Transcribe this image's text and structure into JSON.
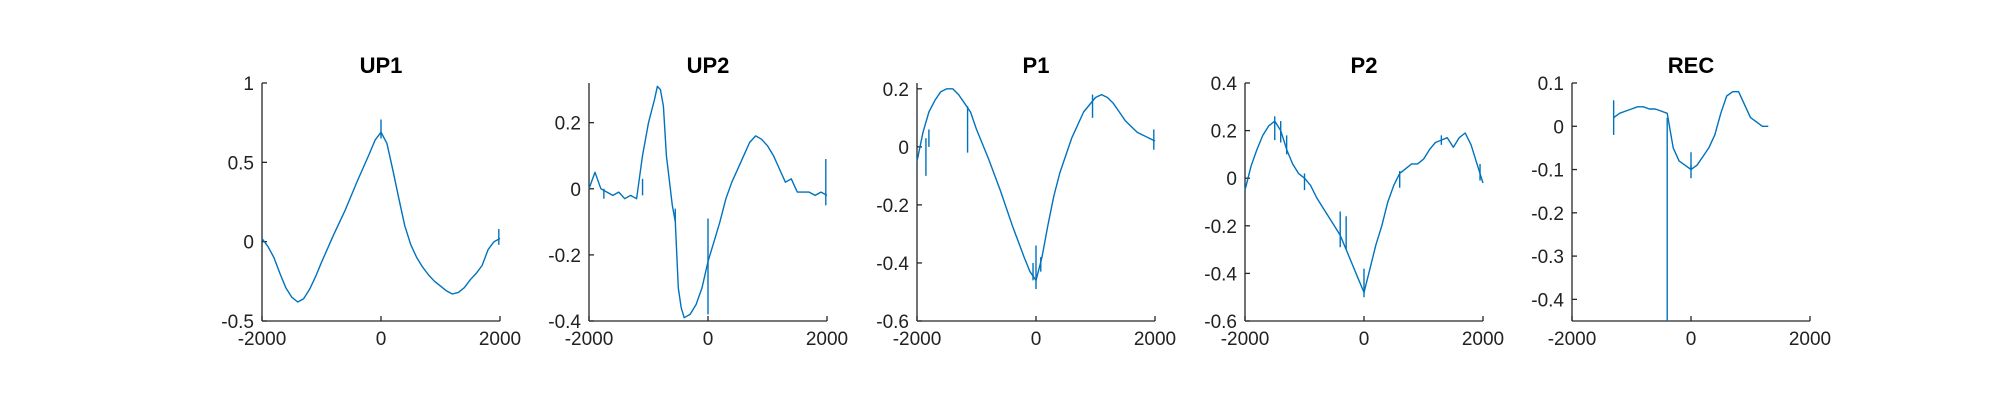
{
  "figure": {
    "background": "#ffffff",
    "line_color": "#0072BD"
  },
  "chart_data": [
    {
      "type": "line",
      "title": "UP1",
      "xlabel": "",
      "ylabel": "",
      "xlim": [
        -2000,
        2000
      ],
      "ylim": [
        -0.5,
        1
      ],
      "xticks": [
        -2000,
        0,
        2000
      ],
      "xtick_labels": [
        "-2000",
        "0",
        "2000"
      ],
      "yticks": [
        -0.5,
        0,
        0.5,
        1
      ],
      "ytick_labels": [
        "-0.5",
        "0",
        "0.5",
        "1"
      ],
      "grid": false,
      "series": [
        {
          "color": "#0072BD",
          "x": [
            -2000,
            -1900,
            -1800,
            -1700,
            -1600,
            -1500,
            -1400,
            -1300,
            -1200,
            -1100,
            -1000,
            -800,
            -600,
            -400,
            -200,
            -100,
            0,
            100,
            200,
            300,
            400,
            500,
            600,
            700,
            800,
            900,
            1000,
            1100,
            1200,
            1300,
            1400,
            1500,
            1600,
            1700,
            1800,
            1900,
            2000
          ],
          "y": [
            0.02,
            -0.03,
            -0.1,
            -0.2,
            -0.29,
            -0.35,
            -0.38,
            -0.36,
            -0.3,
            -0.22,
            -0.13,
            0.04,
            0.2,
            0.38,
            0.55,
            0.64,
            0.69,
            0.62,
            0.45,
            0.27,
            0.1,
            -0.02,
            -0.1,
            -0.16,
            -0.21,
            -0.25,
            -0.28,
            -0.31,
            -0.33,
            -0.32,
            -0.29,
            -0.24,
            -0.2,
            -0.15,
            -0.05,
            0.0,
            0.02
          ]
        },
        {
          "type": "spikes",
          "color": "#0072BD",
          "x": [
            0,
            1980
          ],
          "y0": [
            0.65,
            -0.02
          ],
          "y1": [
            0.77,
            0.08
          ]
        }
      ]
    },
    {
      "type": "line",
      "title": "UP2",
      "xlabel": "",
      "ylabel": "",
      "xlim": [
        -2000,
        2000
      ],
      "ylim": [
        -0.4,
        0.32
      ],
      "xticks": [
        -2000,
        0,
        2000
      ],
      "xtick_labels": [
        "-2000",
        "0",
        "2000"
      ],
      "yticks": [
        -0.4,
        -0.2,
        0,
        0.2
      ],
      "ytick_labels": [
        "-0.4",
        "-0.2",
        "0",
        "0.2"
      ],
      "grid": false,
      "series": [
        {
          "color": "#0072BD",
          "x": [
            -2000,
            -1900,
            -1800,
            -1700,
            -1600,
            -1500,
            -1400,
            -1300,
            -1200,
            -1100,
            -1000,
            -900,
            -850,
            -800,
            -750,
            -700,
            -600,
            -550,
            -500,
            -450,
            -400,
            -300,
            -200,
            -100,
            0,
            100,
            200,
            300,
            400,
            500,
            600,
            700,
            800,
            900,
            1000,
            1100,
            1200,
            1300,
            1400,
            1500,
            1600,
            1700,
            1800,
            1900,
            2000
          ],
          "y": [
            0.0,
            0.05,
            0.0,
            -0.01,
            -0.02,
            -0.01,
            -0.03,
            -0.02,
            -0.03,
            0.1,
            0.2,
            0.27,
            0.31,
            0.3,
            0.25,
            0.1,
            -0.05,
            -0.1,
            -0.3,
            -0.36,
            -0.39,
            -0.38,
            -0.35,
            -0.3,
            -0.22,
            -0.16,
            -0.1,
            -0.03,
            0.02,
            0.06,
            0.1,
            0.14,
            0.16,
            0.15,
            0.13,
            0.1,
            0.06,
            0.02,
            0.03,
            -0.01,
            -0.01,
            -0.01,
            -0.02,
            -0.01,
            -0.02
          ]
        },
        {
          "type": "spikes",
          "color": "#0072BD",
          "x": [
            -1750,
            -1100,
            -550,
            0,
            1980
          ],
          "y0": [
            -0.03,
            0.03,
            -0.06,
            -0.38,
            -0.05
          ],
          "y1": [
            0.0,
            -0.02,
            -0.1,
            -0.09,
            0.09
          ]
        }
      ]
    },
    {
      "type": "line",
      "title": "P1",
      "xlabel": "",
      "ylabel": "",
      "xlim": [
        -2000,
        2000
      ],
      "ylim": [
        -0.6,
        0.22
      ],
      "xticks": [
        -2000,
        0,
        2000
      ],
      "xtick_labels": [
        "-2000",
        "0",
        "2000"
      ],
      "yticks": [
        -0.6,
        -0.4,
        -0.2,
        0,
        0.2
      ],
      "ytick_labels": [
        "-0.6",
        "-0.4",
        "-0.2",
        "0",
        "0.2"
      ],
      "grid": false,
      "series": [
        {
          "color": "#0072BD",
          "x": [
            -2000,
            -1900,
            -1800,
            -1700,
            -1600,
            -1500,
            -1400,
            -1300,
            -1200,
            -1100,
            -1000,
            -800,
            -600,
            -400,
            -200,
            -100,
            0,
            100,
            200,
            300,
            400,
            600,
            800,
            1000,
            1100,
            1200,
            1300,
            1400,
            1500,
            1600,
            1700,
            1800,
            1900,
            2000
          ],
          "y": [
            -0.05,
            0.05,
            0.12,
            0.16,
            0.19,
            0.2,
            0.2,
            0.18,
            0.15,
            0.12,
            0.06,
            -0.04,
            -0.15,
            -0.27,
            -0.38,
            -0.43,
            -0.46,
            -0.38,
            -0.27,
            -0.17,
            -0.09,
            0.03,
            0.12,
            0.17,
            0.18,
            0.17,
            0.15,
            0.12,
            0.09,
            0.07,
            0.05,
            0.04,
            0.03,
            0.02
          ]
        },
        {
          "type": "spikes",
          "color": "#0072BD",
          "x": [
            -1850,
            -1800,
            -1150,
            -50,
            0,
            80,
            950,
            1980
          ],
          "y0": [
            -0.1,
            0.0,
            -0.02,
            -0.46,
            -0.34,
            -0.43,
            0.18,
            -0.01
          ],
          "y1": [
            0.03,
            0.06,
            0.14,
            -0.4,
            -0.49,
            -0.38,
            0.1,
            0.06
          ]
        }
      ]
    },
    {
      "type": "line",
      "title": "P2",
      "xlabel": "",
      "ylabel": "",
      "xlim": [
        -2000,
        2000
      ],
      "ylim": [
        -0.6,
        0.4
      ],
      "xticks": [
        -2000,
        0,
        2000
      ],
      "xtick_labels": [
        "-2000",
        "0",
        "2000"
      ],
      "yticks": [
        -0.6,
        -0.4,
        -0.2,
        0,
        0.2,
        0.4
      ],
      "ytick_labels": [
        "-0.6",
        "-0.4",
        "-0.2",
        "0",
        "0.2",
        "0.4"
      ],
      "grid": false,
      "series": [
        {
          "color": "#0072BD",
          "x": [
            -2000,
            -1900,
            -1800,
            -1700,
            -1600,
            -1500,
            -1400,
            -1300,
            -1200,
            -1100,
            -1000,
            -900,
            -800,
            -700,
            -600,
            -500,
            -400,
            -300,
            -200,
            -100,
            0,
            100,
            200,
            300,
            400,
            500,
            600,
            700,
            800,
            900,
            1000,
            1100,
            1200,
            1300,
            1400,
            1500,
            1600,
            1700,
            1800,
            1900,
            2000
          ],
          "y": [
            -0.05,
            0.05,
            0.12,
            0.18,
            0.22,
            0.24,
            0.2,
            0.12,
            0.06,
            0.02,
            0.0,
            -0.03,
            -0.08,
            -0.12,
            -0.16,
            -0.2,
            -0.24,
            -0.3,
            -0.36,
            -0.42,
            -0.48,
            -0.38,
            -0.28,
            -0.2,
            -0.1,
            -0.03,
            0.02,
            0.04,
            0.06,
            0.06,
            0.08,
            0.12,
            0.15,
            0.16,
            0.17,
            0.13,
            0.17,
            0.19,
            0.14,
            0.06,
            -0.02
          ]
        },
        {
          "type": "spikes",
          "color": "#0072BD",
          "x": [
            -1500,
            -1400,
            -1300,
            -1000,
            -400,
            -300,
            0,
            600,
            1300,
            1950
          ],
          "y0": [
            0.26,
            0.15,
            0.1,
            -0.05,
            -0.14,
            -0.3,
            -0.5,
            -0.04,
            0.14,
            0.06
          ],
          "y1": [
            0.16,
            0.24,
            0.18,
            0.02,
            -0.29,
            -0.16,
            -0.38,
            0.03,
            0.18,
            -0.01
          ]
        }
      ]
    },
    {
      "type": "line",
      "title": "REC",
      "xlabel": "",
      "ylabel": "",
      "xlim": [
        -2000,
        2000
      ],
      "ylim": [
        -0.45,
        0.1
      ],
      "xticks": [
        -2000,
        0,
        2000
      ],
      "xtick_labels": [
        "-2000",
        "0",
        "2000"
      ],
      "yticks": [
        -0.4,
        -0.3,
        -0.2,
        -0.1,
        0,
        0.1
      ],
      "ytick_labels": [
        "-0.4",
        "-0.3",
        "-0.2",
        "-0.1",
        "0",
        "0.1"
      ],
      "grid": false,
      "series": [
        {
          "color": "#0072BD",
          "x": [
            -1300,
            -1200,
            -1100,
            -1000,
            -900,
            -800,
            -700,
            -600,
            -500,
            -400,
            -350,
            -300,
            -200,
            -100,
            0,
            100,
            200,
            300,
            400,
            500,
            600,
            700,
            800,
            900,
            1000,
            1100,
            1200,
            1300
          ],
          "y": [
            0.02,
            0.03,
            0.035,
            0.04,
            0.045,
            0.045,
            0.04,
            0.04,
            0.035,
            0.03,
            -0.01,
            -0.05,
            -0.08,
            -0.09,
            -0.1,
            -0.09,
            -0.07,
            -0.05,
            -0.02,
            0.03,
            0.07,
            0.08,
            0.08,
            0.05,
            0.02,
            0.01,
            0.0,
            0.0
          ]
        },
        {
          "type": "spikes",
          "color": "#0072BD",
          "x": [
            -1300,
            -400,
            0,
            0
          ],
          "y0": [
            -0.02,
            0.02,
            -0.06,
            -0.12
          ],
          "y1": [
            0.06,
            -0.45,
            -0.1,
            -0.09
          ]
        }
      ]
    }
  ]
}
